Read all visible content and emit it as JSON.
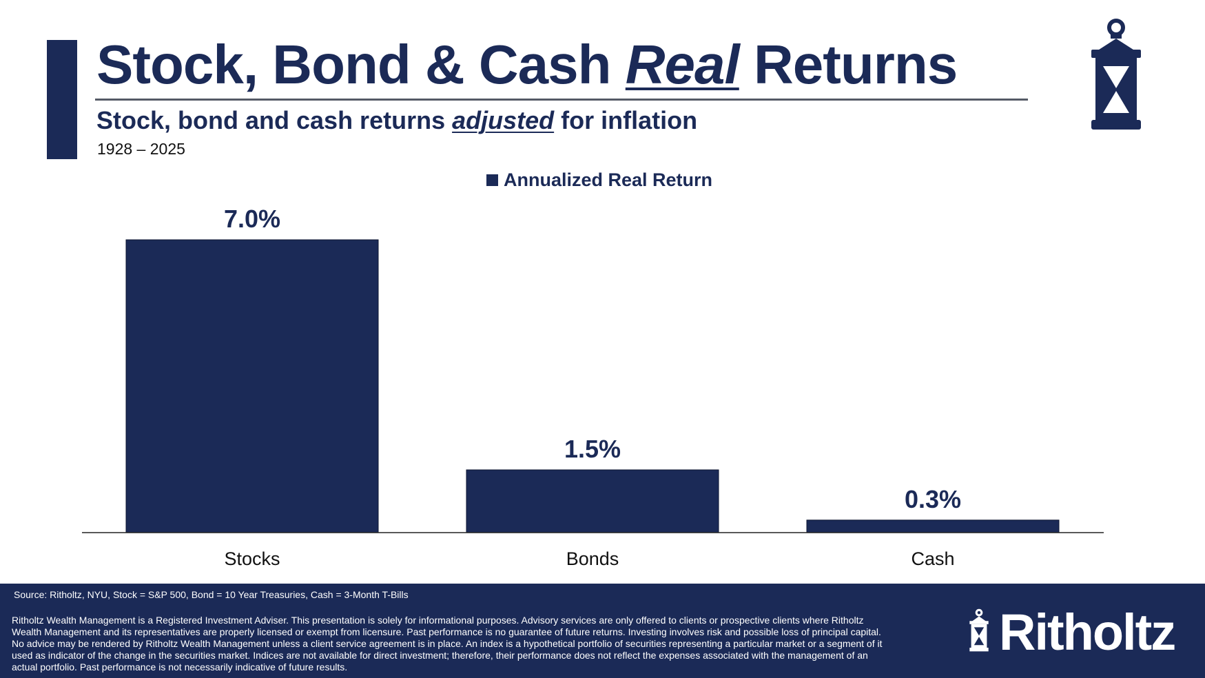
{
  "header": {
    "title_part1": "Stock, Bond & Cash ",
    "title_emphasis": "Real",
    "title_part2": " Returns",
    "subtitle_part1": "Stock, bond and cash returns ",
    "subtitle_emphasis": "adjusted",
    "subtitle_part2": " for inflation",
    "date_range": "1928 – 2025"
  },
  "colors": {
    "navy": "#1b2a57",
    "rule": "#555a66",
    "background": "#ffffff"
  },
  "icons": {
    "header_logo": "lantern-icon",
    "footer_logo": "lantern-icon"
  },
  "chart_data": {
    "type": "bar",
    "categories": [
      "Stocks",
      "Bonds",
      "Cash"
    ],
    "series": [
      {
        "name": "Annualized Real Return",
        "values": [
          7.0,
          1.5,
          0.3
        ]
      }
    ],
    "data_labels": [
      "7.0%",
      "1.5%",
      "0.3%"
    ],
    "ylim": [
      0,
      7.0
    ],
    "grid": false,
    "legend_position": "top-center"
  },
  "footer": {
    "source": "Source: Ritholtz, NYU, Stock = S&P 500, Bond = 10 Year Treasuries, Cash = 3-Month T-Bills",
    "disclaimer": "Ritholtz Wealth Management is a Registered Investment Adviser. This presentation is solely for informational purposes. Advisory services are only offered to clients or prospective clients where Ritholtz Wealth Management and its representatives are properly licensed or exempt from licensure. Past performance is no guarantee of future returns. Investing involves risk and possible loss of principal capital. No advice may be rendered by Ritholtz Wealth Management unless a client service agreement is in place. An index is a hypothetical portfolio of securities representing a particular market or a segment of it used as indicator of the change in the securities market. Indices are not available for direct investment; therefore, their performance does not reflect the expenses associated with the management of an actual portfolio. Past performance is not necessarily indicative of future results.",
    "brand": "Ritholtz"
  }
}
